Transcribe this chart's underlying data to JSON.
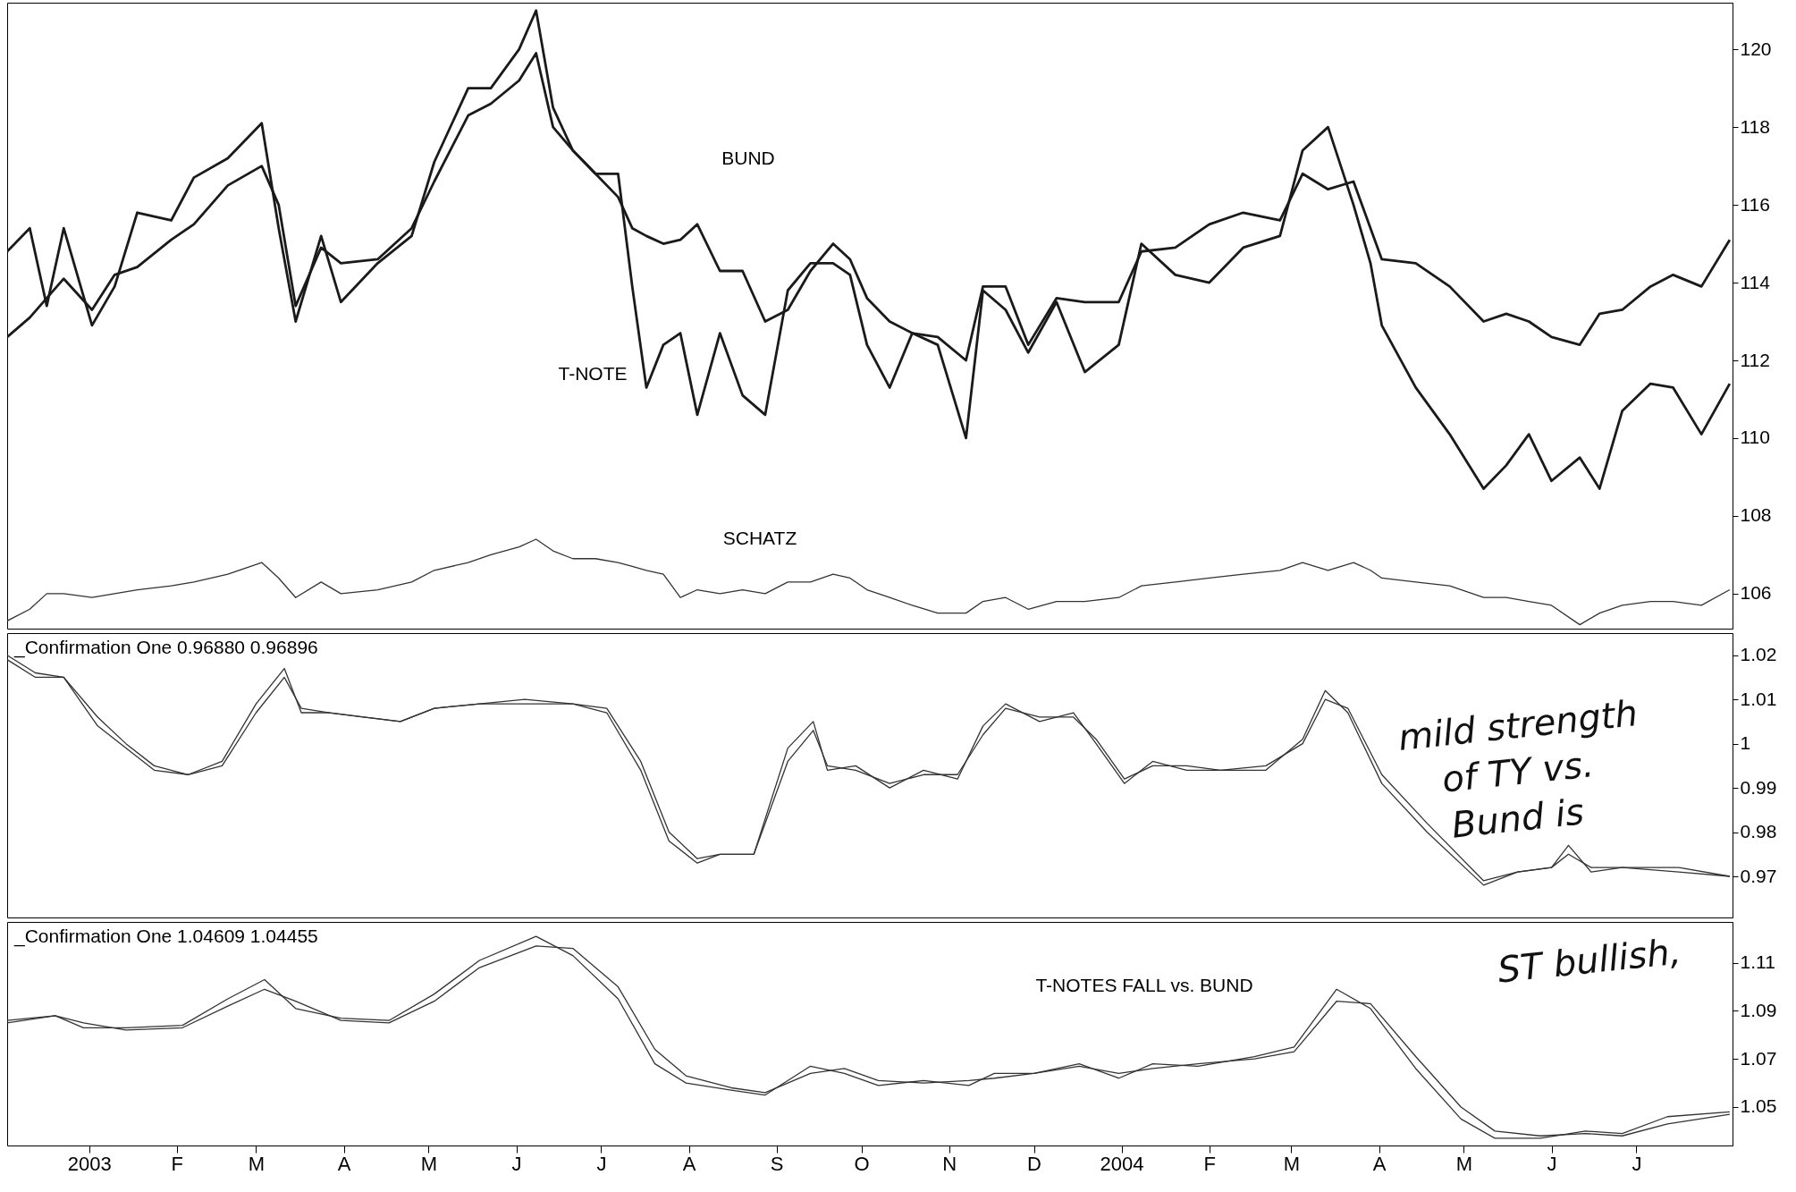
{
  "chart_data": [
    {
      "type": "line",
      "xlim": [
        "2002-12-17",
        "2004-08-18"
      ],
      "ylim": [
        105.1,
        121.2
      ],
      "yticks": [
        106,
        108,
        110,
        112,
        114,
        116,
        118,
        120
      ],
      "tick_labels": "y",
      "x": [
        "2002-12-17",
        "2002-12-25",
        "2002-12-31",
        "2003-01-06",
        "2003-01-16",
        "2003-01-24",
        "2003-02-01",
        "2003-02-13",
        "2003-02-21",
        "2003-03-05",
        "2003-03-17",
        "2003-03-23",
        "2003-03-29",
        "2003-04-07",
        "2003-04-14",
        "2003-04-27",
        "2003-05-09",
        "2003-05-17",
        "2003-05-29",
        "2003-06-06",
        "2003-06-16",
        "2003-06-22",
        "2003-06-28",
        "2003-07-05",
        "2003-07-13",
        "2003-07-21",
        "2003-07-26",
        "2003-07-31",
        "2003-08-06",
        "2003-08-12",
        "2003-08-18",
        "2003-08-26",
        "2003-09-03",
        "2003-09-11",
        "2003-09-19",
        "2003-09-27",
        "2003-10-05",
        "2003-10-11",
        "2003-10-17",
        "2003-10-25",
        "2003-11-02",
        "2003-11-11",
        "2003-11-21",
        "2003-11-27",
        "2003-12-05",
        "2003-12-13",
        "2003-12-23",
        "2004-01-02",
        "2004-01-14",
        "2004-01-22",
        "2004-02-03",
        "2004-02-15",
        "2004-02-27",
        "2004-03-11",
        "2004-03-19",
        "2004-03-28",
        "2004-04-06",
        "2004-04-12",
        "2004-04-16",
        "2004-04-28",
        "2004-05-10",
        "2004-05-22",
        "2004-05-30",
        "2004-06-07",
        "2004-06-15",
        "2004-06-25",
        "2004-07-02",
        "2004-07-10",
        "2004-07-20",
        "2004-07-28",
        "2004-08-07",
        "2004-08-17"
      ],
      "series": [
        {
          "color": "#1a1a1a",
          "values": [
            114.8,
            115.4,
            113.4,
            115.4,
            112.9,
            113.9,
            115.8,
            115.6,
            116.7,
            117.2,
            118.1,
            115.4,
            113.0,
            115.2,
            113.5,
            114.5,
            115.2,
            117.1,
            119.0,
            119.0,
            120.0,
            121.0,
            118.5,
            117.4,
            116.8,
            116.8,
            113.9,
            111.3,
            112.4,
            112.7,
            110.6,
            112.7,
            111.1,
            110.6,
            113.8,
            114.5,
            114.5,
            114.2,
            112.4,
            111.3,
            112.7,
            112.4,
            110.0,
            113.8,
            113.3,
            112.2,
            113.5,
            111.7,
            112.4,
            115.0,
            114.2,
            114.0,
            114.9,
            115.2,
            117.4,
            118.0,
            116.0,
            114.5,
            112.9,
            111.3,
            110.1,
            108.7,
            109.3,
            110.1,
            108.9,
            109.5,
            108.7,
            110.7,
            111.4,
            111.3,
            110.1,
            111.4
          ]
        },
        {
          "color": "#1a1a1a",
          "values": [
            112.6,
            113.1,
            113.6,
            114.1,
            113.3,
            114.2,
            114.4,
            115.1,
            115.5,
            116.5,
            117.0,
            116.0,
            113.4,
            114.9,
            114.5,
            114.6,
            115.4,
            116.6,
            118.3,
            118.6,
            119.2,
            119.9,
            118.0,
            117.4,
            116.8,
            116.2,
            115.4,
            115.2,
            115.0,
            115.1,
            115.5,
            114.3,
            114.3,
            113.0,
            113.3,
            114.3,
            115.0,
            114.6,
            113.6,
            113.0,
            112.7,
            112.6,
            112.0,
            113.9,
            113.9,
            112.4,
            113.6,
            113.5,
            113.5,
            114.8,
            114.9,
            115.5,
            115.8,
            115.6,
            116.8,
            116.4,
            116.6,
            115.4,
            114.6,
            114.5,
            113.9,
            113.0,
            113.2,
            113.0,
            112.6,
            112.4,
            113.2,
            113.3,
            113.9,
            114.2,
            113.9,
            115.1
          ]
        },
        {
          "color": "#333333",
          "values": [
            105.3,
            105.6,
            106.0,
            106.0,
            105.9,
            106.0,
            106.1,
            106.2,
            106.3,
            106.5,
            106.8,
            106.4,
            105.9,
            106.3,
            106.0,
            106.1,
            106.3,
            106.6,
            106.8,
            107.0,
            107.2,
            107.4,
            107.1,
            106.9,
            106.9,
            106.8,
            106.7,
            106.6,
            106.5,
            105.9,
            106.1,
            106.0,
            106.1,
            106.0,
            106.3,
            106.3,
            106.5,
            106.4,
            106.1,
            105.9,
            105.7,
            105.5,
            105.5,
            105.8,
            105.9,
            105.6,
            105.8,
            105.8,
            105.9,
            106.2,
            106.3,
            106.4,
            106.5,
            106.6,
            106.8,
            106.6,
            106.8,
            106.6,
            106.4,
            106.3,
            106.2,
            105.9,
            105.9,
            105.8,
            105.7,
            105.2,
            105.5,
            105.7,
            105.8,
            105.8,
            105.7,
            106.1
          ]
        }
      ],
      "annotations": [
        "BUND",
        "T-NOTE",
        "SCHATZ"
      ]
    },
    {
      "type": "line",
      "title": "_Confirmation One  0.96880  0.96896",
      "xlim": [
        "2002-12-17",
        "2004-08-18"
      ],
      "ylim": [
        0.9607,
        1.025
      ],
      "yticks": [
        0.97,
        0.98,
        0.99,
        1,
        1.01,
        1.02
      ],
      "tick_labels": "y",
      "x": [
        "2002-12-17",
        "2002-12-27",
        "2003-01-06",
        "2003-01-18",
        "2003-01-28",
        "2003-02-07",
        "2003-02-19",
        "2003-03-03",
        "2003-03-15",
        "2003-03-25",
        "2003-03-31",
        "2003-04-10",
        "2003-04-22",
        "2003-05-05",
        "2003-05-17",
        "2003-06-02",
        "2003-06-18",
        "2003-07-05",
        "2003-07-17",
        "2003-07-29",
        "2003-08-08",
        "2003-08-18",
        "2003-08-26",
        "2003-09-07",
        "2003-09-19",
        "2003-09-28",
        "2003-10-03",
        "2003-10-13",
        "2003-10-25",
        "2003-11-06",
        "2003-11-18",
        "2003-11-27",
        "2003-12-05",
        "2003-12-17",
        "2003-12-29",
        "2004-01-06",
        "2004-01-16",
        "2004-01-26",
        "2004-02-07",
        "2004-02-19",
        "2004-03-06",
        "2004-03-19",
        "2004-03-27",
        "2004-04-04",
        "2004-04-16",
        "2004-05-02",
        "2004-05-22",
        "2004-06-03",
        "2004-06-15",
        "2004-06-21",
        "2004-06-29",
        "2004-07-10",
        "2004-07-30",
        "2004-08-17"
      ],
      "series": [
        {
          "color": "#333333",
          "values": [
            1.019,
            1.015,
            1.015,
            1.004,
            0.999,
            0.994,
            0.993,
            0.996,
            1.009,
            1.017,
            1.007,
            1.007,
            1.006,
            1.005,
            1.008,
            1.009,
            1.01,
            1.009,
            1.007,
            0.994,
            0.978,
            0.973,
            0.975,
            0.975,
            0.999,
            1.005,
            0.994,
            0.995,
            0.99,
            0.994,
            0.992,
            1.004,
            1.009,
            1.005,
            1.007,
            1.0,
            0.991,
            0.996,
            0.994,
            0.994,
            0.994,
            1.001,
            1.012,
            1.007,
            0.991,
            0.98,
            0.968,
            0.971,
            0.972,
            0.977,
            0.971,
            0.972,
            0.971,
            0.97
          ]
        },
        {
          "color": "#333333",
          "values": [
            1.02,
            1.016,
            1.015,
            1.006,
            1.0,
            0.995,
            0.993,
            0.995,
            1.007,
            1.015,
            1.008,
            1.007,
            1.006,
            1.005,
            1.008,
            1.009,
            1.009,
            1.009,
            1.008,
            0.996,
            0.98,
            0.974,
            0.975,
            0.975,
            0.996,
            1.003,
            0.995,
            0.994,
            0.991,
            0.993,
            0.993,
            1.002,
            1.008,
            1.006,
            1.006,
            1.001,
            0.992,
            0.995,
            0.995,
            0.994,
            0.995,
            1.0,
            1.01,
            1.008,
            0.993,
            0.982,
            0.969,
            0.971,
            0.972,
            0.975,
            0.972,
            0.972,
            0.972,
            0.97
          ]
        }
      ],
      "annotations": [
        "mild strength",
        "of TY vs.",
        "Bund is"
      ]
    },
    {
      "type": "line",
      "title": "_Confirmation One  1.04609  1.04455",
      "xlim": [
        "2002-12-17",
        "2004-08-18"
      ],
      "ylim": [
        1.034,
        1.127
      ],
      "yticks": [
        1.05,
        1.07,
        1.09,
        1.11
      ],
      "xticks": [
        {
          "value": "2003-01-15",
          "label": "2003"
        },
        {
          "value": "2003-02-15",
          "label": "F"
        },
        {
          "value": "2003-03-15",
          "label": "M"
        },
        {
          "value": "2003-04-15",
          "label": "A"
        },
        {
          "value": "2003-05-15",
          "label": "M"
        },
        {
          "value": "2003-06-15",
          "label": "J"
        },
        {
          "value": "2003-07-15",
          "label": "J"
        },
        {
          "value": "2003-08-15",
          "label": "A"
        },
        {
          "value": "2003-09-15",
          "label": "S"
        },
        {
          "value": "2003-10-15",
          "label": "O"
        },
        {
          "value": "2003-11-15",
          "label": "N"
        },
        {
          "value": "2003-12-15",
          "label": "D"
        },
        {
          "value": "2004-01-15",
          "label": "2004"
        },
        {
          "value": "2004-02-15",
          "label": "F"
        },
        {
          "value": "2004-03-15",
          "label": "M"
        },
        {
          "value": "2004-04-15",
          "label": "A"
        },
        {
          "value": "2004-05-15",
          "label": "M"
        },
        {
          "value": "2004-06-15",
          "label": "J"
        },
        {
          "value": "2004-07-15",
          "label": "J"
        }
      ],
      "x": [
        "2002-12-17",
        "2003-01-03",
        "2003-01-13",
        "2003-01-28",
        "2003-02-17",
        "2003-03-05",
        "2003-03-18",
        "2003-03-29",
        "2003-04-14",
        "2003-05-01",
        "2003-05-17",
        "2003-06-02",
        "2003-06-22",
        "2003-07-05",
        "2003-07-21",
        "2003-08-03",
        "2003-08-14",
        "2003-08-30",
        "2003-09-11",
        "2003-09-27",
        "2003-10-09",
        "2003-10-21",
        "2003-11-06",
        "2003-11-22",
        "2003-12-01",
        "2003-12-15",
        "2003-12-31",
        "2004-01-14",
        "2004-01-26",
        "2004-02-11",
        "2004-03-02",
        "2004-03-16",
        "2004-03-31",
        "2004-04-12",
        "2004-04-28",
        "2004-05-14",
        "2004-05-26",
        "2004-06-11",
        "2004-06-27",
        "2004-07-10",
        "2004-07-26",
        "2004-08-17"
      ],
      "series": [
        {
          "color": "#333333",
          "values": [
            1.086,
            1.088,
            1.083,
            1.083,
            1.084,
            1.095,
            1.103,
            1.091,
            1.087,
            1.086,
            1.097,
            1.111,
            1.121,
            1.113,
            1.095,
            1.068,
            1.06,
            1.057,
            1.055,
            1.067,
            1.064,
            1.059,
            1.061,
            1.059,
            1.064,
            1.064,
            1.068,
            1.062,
            1.068,
            1.067,
            1.071,
            1.075,
            1.099,
            1.091,
            1.066,
            1.045,
            1.037,
            1.037,
            1.04,
            1.039,
            1.046,
            1.048
          ]
        },
        {
          "color": "#333333",
          "values": [
            1.085,
            1.088,
            1.085,
            1.082,
            1.083,
            1.092,
            1.099,
            1.094,
            1.086,
            1.085,
            1.094,
            1.108,
            1.117,
            1.116,
            1.1,
            1.074,
            1.063,
            1.058,
            1.056,
            1.064,
            1.066,
            1.061,
            1.06,
            1.061,
            1.062,
            1.064,
            1.067,
            1.064,
            1.066,
            1.068,
            1.07,
            1.073,
            1.094,
            1.093,
            1.071,
            1.05,
            1.04,
            1.038,
            1.039,
            1.038,
            1.043,
            1.047
          ]
        }
      ],
      "annotations": [
        "T-NOTES FALL vs. BUND",
        "ST bullish,"
      ]
    }
  ]
}
